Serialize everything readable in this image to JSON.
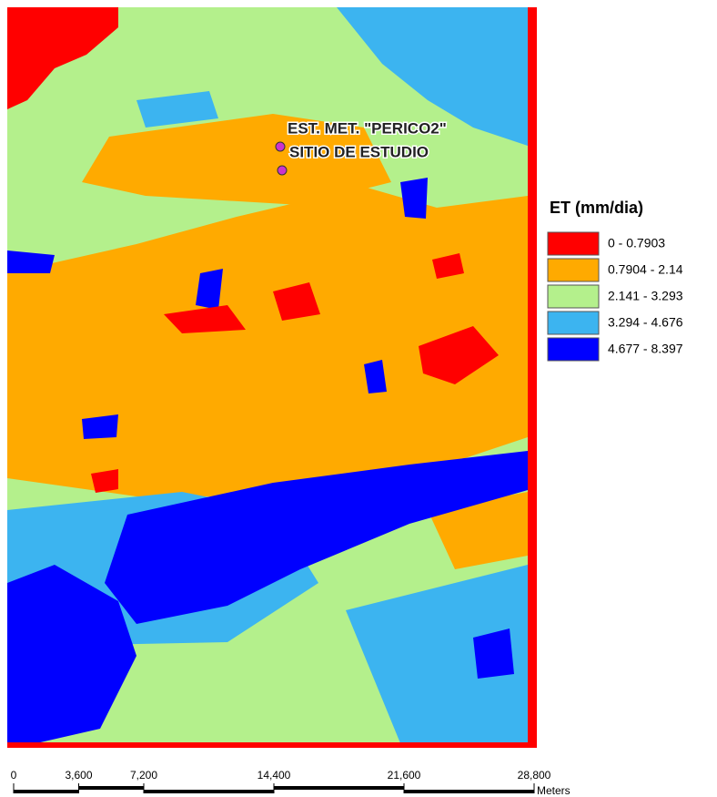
{
  "map": {
    "annotations": [
      "EST. MET. \"PERICO2\"",
      "SITIO DE ESTUDIO"
    ],
    "legend": {
      "title": "ET (mm/dia)",
      "items": [
        {
          "label": "0 - 0.7903",
          "color": "#ff0000"
        },
        {
          "label": "0.7904 - 2.14",
          "color": "#ffaa00"
        },
        {
          "label": "2.141 - 3.293",
          "color": "#b4f08c"
        },
        {
          "label": "3.294 - 4.676",
          "color": "#3cb4f0"
        },
        {
          "label": "4.677 - 8.397",
          "color": "#0000ff"
        }
      ]
    },
    "scale_bar": {
      "ticks": [
        0,
        {
          "value": 3600,
          "label": "3,600"
        },
        {
          "value": 7200,
          "label": "7,200"
        },
        {
          "value": 14400,
          "label": "14,400"
        },
        {
          "value": 21600,
          "label": "21,600"
        },
        {
          "value": 28800,
          "label": "28,800"
        }
      ],
      "unit": "Meters"
    }
  }
}
